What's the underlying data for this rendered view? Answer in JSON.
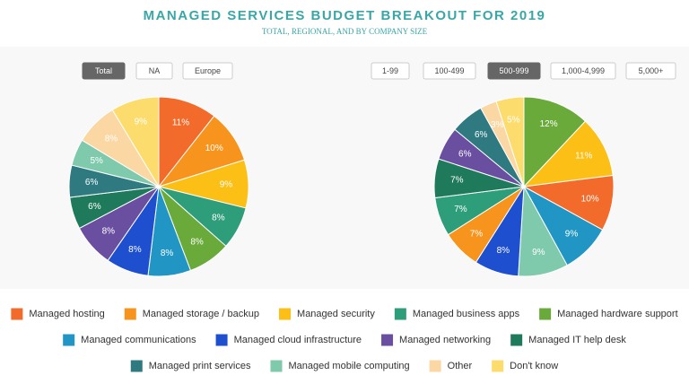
{
  "header": {
    "title": "MANAGED SERVICES BUDGET BREAKOUT FOR 2019",
    "subtitle": "TOTAL, REGIONAL, AND BY COMPANY SIZE"
  },
  "chart_data": [
    {
      "type": "pie",
      "filters": [
        "Total",
        "NA",
        "Europe"
      ],
      "selected_filter": 0,
      "values": [
        11,
        10,
        9,
        8,
        8,
        8,
        8,
        8,
        6,
        6,
        5,
        8,
        9
      ],
      "value_labels": [
        "11%",
        "10%",
        "9%",
        "8%",
        "8%",
        "8%",
        "8%",
        "8%",
        "6%",
        "6%",
        "5%",
        "8%",
        "9%"
      ],
      "colors": [
        "#f26b2b",
        "#f7941d",
        "#fbbf16",
        "#2e9d7a",
        "#6aaa3b",
        "#2196c4",
        "#1d4fcf",
        "#6a4ea0",
        "#1f7a5b",
        "#2e7a80",
        "#7fc9ad",
        "#fbd7a3",
        "#fddc6e"
      ]
    },
    {
      "type": "pie",
      "filters": [
        "1-99",
        "100-499",
        "500-999",
        "1,000-4,999",
        "5,000+"
      ],
      "selected_filter": 2,
      "values": [
        12,
        11,
        10,
        9,
        9,
        8,
        7,
        7,
        7,
        6,
        6,
        3,
        5
      ],
      "value_labels": [
        "12%",
        "11%",
        "10%",
        "9%",
        "9%",
        "8%",
        "7%",
        "7%",
        "7%",
        "6%",
        "6%",
        "3%",
        "5%"
      ],
      "colors": [
        "#6aaa3b",
        "#fbbf16",
        "#f26b2b",
        "#2196c4",
        "#7fc9ad",
        "#1d4fcf",
        "#f7941d",
        "#2e9d7a",
        "#1f7a5b",
        "#6a4ea0",
        "#2e7a80",
        "#fbd7a3",
        "#fddc6e"
      ]
    }
  ],
  "legend": [
    {
      "name": "Managed hosting",
      "color": "#f26b2b"
    },
    {
      "name": "Managed storage / backup",
      "color": "#f7941d"
    },
    {
      "name": "Managed security",
      "color": "#fbbf16"
    },
    {
      "name": "Managed business apps",
      "color": "#2e9d7a"
    },
    {
      "name": "Managed hardware support",
      "color": "#6aaa3b"
    },
    {
      "name": "Managed communications",
      "color": "#2196c4"
    },
    {
      "name": "Managed cloud infrastructure",
      "color": "#1d4fcf"
    },
    {
      "name": "Managed networking",
      "color": "#6a4ea0"
    },
    {
      "name": "Managed IT help desk",
      "color": "#1f7a5b"
    },
    {
      "name": "Managed print services",
      "color": "#2e7a80"
    },
    {
      "name": "Managed mobile computing",
      "color": "#7fc9ad"
    },
    {
      "name": "Other",
      "color": "#fbd7a3"
    },
    {
      "name": "Don't know",
      "color": "#fddc6e"
    }
  ]
}
